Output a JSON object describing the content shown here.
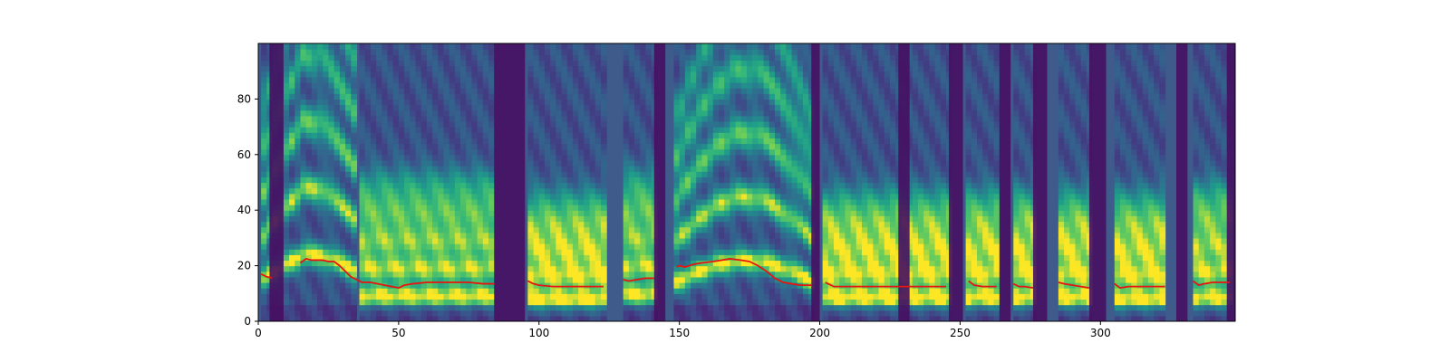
{
  "chart_data": {
    "type": "heatmap",
    "title": "",
    "xlabel": "",
    "ylabel": "",
    "xlim": [
      0,
      348
    ],
    "ylim": [
      0,
      100
    ],
    "x_ticks": [
      0,
      50,
      100,
      150,
      200,
      250,
      300
    ],
    "y_ticks": [
      0,
      20,
      40,
      60,
      80
    ],
    "x_tick_labels": [
      "0",
      "50",
      "100",
      "150",
      "200",
      "250",
      "300"
    ],
    "y_tick_labels": [
      "0",
      "20",
      "40",
      "60",
      "80"
    ],
    "grid": false,
    "colormap": "viridis",
    "colors": {
      "line": "#e8140f",
      "background": "#3f5b8c"
    },
    "silence_bands": [
      [
        4,
        9
      ],
      [
        84,
        95
      ],
      [
        141,
        145
      ],
      [
        197,
        200
      ],
      [
        228,
        232
      ],
      [
        246,
        251
      ],
      [
        264,
        268
      ],
      [
        276,
        281
      ],
      [
        296,
        302
      ],
      [
        327,
        331
      ],
      [
        345,
        348
      ]
    ],
    "voiced_segments": [
      {
        "x0": 1,
        "x1": 35,
        "shape": "formant-rise",
        "peak": [
          24,
          48
        ],
        "spacing": 24
      },
      {
        "x0": 36,
        "x1": 84,
        "shape": "flat",
        "peak": [
          14,
          30
        ],
        "spacing": 15
      },
      {
        "x0": 96,
        "x1": 123,
        "shape": "flat",
        "peak": [
          12,
          26
        ],
        "spacing": 13
      },
      {
        "x0": 130,
        "x1": 141,
        "shape": "flat",
        "peak": [
          15,
          30
        ],
        "spacing": 15
      },
      {
        "x0": 148,
        "x1": 197,
        "shape": "arch",
        "peak": [
          22,
          47
        ],
        "spacing": 23
      },
      {
        "x0": 201,
        "x1": 246,
        "shape": "flat",
        "peak": [
          13,
          28
        ],
        "spacing": 13
      },
      {
        "x0": 252,
        "x1": 264,
        "shape": "flat",
        "peak": [
          13,
          26
        ],
        "spacing": 13
      },
      {
        "x0": 269,
        "x1": 276,
        "shape": "flat",
        "peak": [
          13,
          26
        ],
        "spacing": 13
      },
      {
        "x0": 285,
        "x1": 296,
        "shape": "flat",
        "peak": [
          13,
          26
        ],
        "spacing": 13
      },
      {
        "x0": 305,
        "x1": 323,
        "shape": "flat",
        "peak": [
          12,
          26
        ],
        "spacing": 13
      },
      {
        "x0": 333,
        "x1": 347,
        "shape": "flat",
        "peak": [
          13,
          28
        ],
        "spacing": 14
      }
    ],
    "series": [
      {
        "segments": [
          {
            "x": [
              1,
              3,
              5
            ],
            "y": [
              17,
              16,
              15.5
            ]
          },
          {
            "x": [
              15,
              17,
              19,
              21,
              23,
              25,
              27,
              29,
              31,
              33,
              35,
              37,
              40,
              45,
              50,
              52,
              55,
              60,
              65,
              70,
              75,
              80,
              84
            ],
            "y": [
              21,
              22.5,
              22,
              22,
              22,
              21.5,
              21.5,
              20,
              18,
              16,
              15,
              14,
              14,
              13,
              12,
              13,
              13.5,
              14,
              14,
              14,
              14,
              13.5,
              13.5
            ]
          },
          {
            "x": [
              96,
              98,
              100,
              105,
              110,
              115,
              120,
              123
            ],
            "y": [
              14.5,
              13.5,
              13,
              12.5,
              12.5,
              12.5,
              12.5,
              12.5
            ]
          },
          {
            "x": [
              130,
              132,
              135,
              138,
              141
            ],
            "y": [
              15,
              14.5,
              15,
              15.5,
              15.5
            ]
          },
          {
            "x": [
              149,
              150,
              152,
              155,
              158,
              162,
              165,
              168,
              172,
              175,
              178,
              181,
              184,
              187,
              190,
              193,
              197
            ],
            "y": [
              19.5,
              20,
              19.5,
              20.5,
              21,
              21.5,
              22,
              22.5,
              22,
              21.5,
              20,
              18,
              15.5,
              14,
              13.5,
              13,
              13
            ]
          },
          {
            "x": [
              202,
              203,
              205,
              210,
              215,
              220,
              225,
              230,
              235,
              240,
              245
            ],
            "y": [
              14,
              13.5,
              12.5,
              12.5,
              12.5,
              12.5,
              12.5,
              12.5,
              12.5,
              12.5,
              12.5
            ]
          },
          {
            "x": [
              253,
              255,
              258,
              261,
              263
            ],
            "y": [
              14.5,
              13,
              12.5,
              12.5,
              12.5
            ]
          },
          {
            "x": [
              269,
              271,
              273,
              276
            ],
            "y": [
              13.5,
              12.5,
              12.5,
              12
            ]
          },
          {
            "x": [
              285,
              287,
              290,
              293,
              296
            ],
            "y": [
              14,
              13.5,
              13,
              12.5,
              12
            ]
          },
          {
            "x": [
              305,
              307,
              310,
              315,
              320,
              323
            ],
            "y": [
              13.5,
              12,
              12.5,
              12.5,
              12.5,
              12.5
            ]
          },
          {
            "x": [
              333,
              335,
              337,
              340,
              343,
              346
            ],
            "y": [
              14.5,
              13,
              13.5,
              14,
              14,
              14
            ]
          }
        ]
      }
    ]
  }
}
